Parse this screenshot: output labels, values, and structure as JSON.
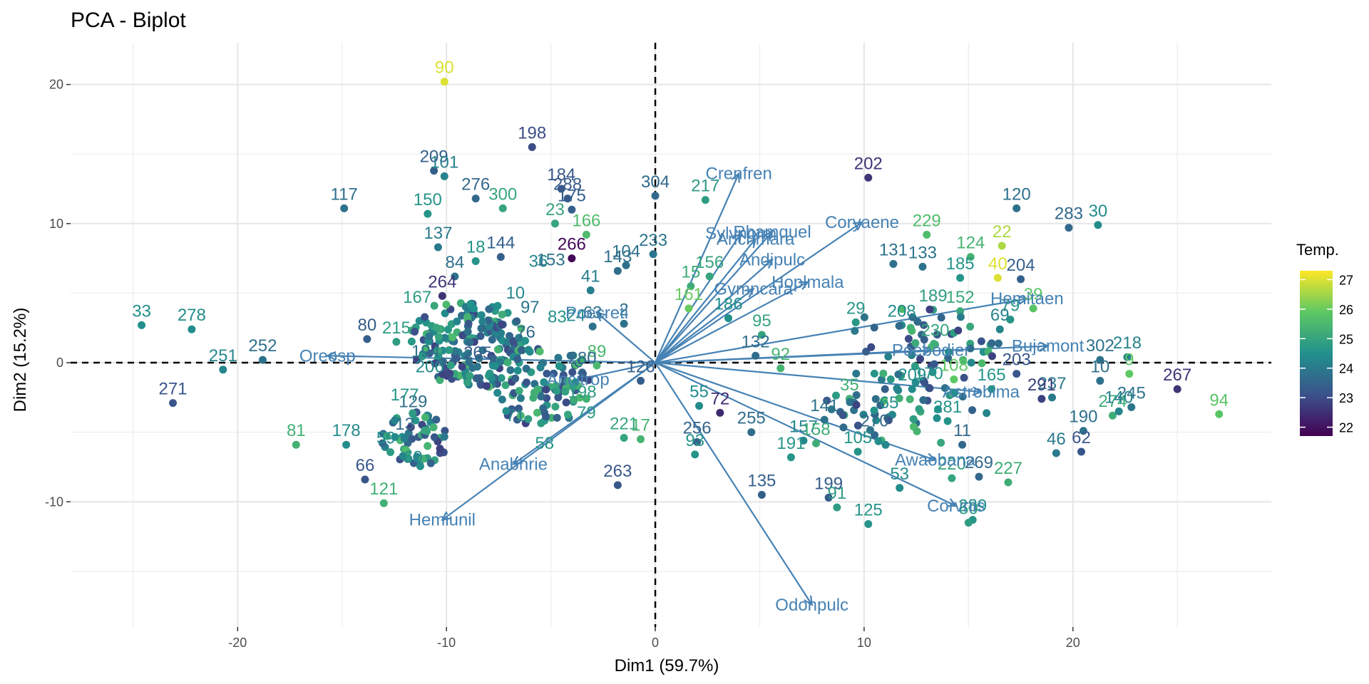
{
  "chart_data": {
    "type": "scatter",
    "title": "PCA - Biplot",
    "xlabel": "Dim1 (59.7%)",
    "ylabel": "Dim2 (15.2%)",
    "xlim": [
      -28,
      29.5
    ],
    "ylim": [
      -19,
      23
    ],
    "xticks": [
      -20,
      -10,
      0,
      10,
      20
    ],
    "yticks": [
      -10,
      0,
      10,
      20
    ],
    "grid": true,
    "legend": {
      "title": "Temp.",
      "position": "right",
      "range": [
        21.7,
        27.3
      ],
      "ticks": [
        22,
        23,
        24,
        25,
        26,
        27
      ]
    },
    "arrow_color": "#4682b4",
    "color_scale": [
      "#440154",
      "#3b528b",
      "#21908c",
      "#5dc863",
      "#fde725"
    ],
    "points": [
      {
        "label": "90",
        "x": -10.1,
        "y": 20.2,
        "temp": 27.0
      },
      {
        "label": "198",
        "x": -5.9,
        "y": 15.5,
        "temp": 23.0
      },
      {
        "label": "209",
        "x": -10.6,
        "y": 13.8,
        "temp": 23.4
      },
      {
        "label": "101",
        "x": -10.1,
        "y": 13.4,
        "temp": 24.2
      },
      {
        "label": "117",
        "x": -14.9,
        "y": 11.1,
        "temp": 23.8
      },
      {
        "label": "276",
        "x": -8.6,
        "y": 11.8,
        "temp": 23.6
      },
      {
        "label": "300",
        "x": -7.3,
        "y": 11.1,
        "temp": 25.0
      },
      {
        "label": "150",
        "x": -10.9,
        "y": 10.7,
        "temp": 24.6
      },
      {
        "label": "184",
        "x": -4.5,
        "y": 12.5,
        "temp": 23.2
      },
      {
        "label": "288",
        "x": -4.2,
        "y": 11.8,
        "temp": 23.3
      },
      {
        "label": "175",
        "x": -4.0,
        "y": 11.0,
        "temp": 23.4
      },
      {
        "label": "304",
        "x": 0.0,
        "y": 12.0,
        "temp": 23.6
      },
      {
        "label": "23",
        "x": -4.8,
        "y": 10.0,
        "temp": 25.0
      },
      {
        "label": "166",
        "x": -3.3,
        "y": 9.2,
        "temp": 25.6
      },
      {
        "label": "266",
        "x": -4.0,
        "y": 7.5,
        "temp": 21.8
      },
      {
        "label": "137",
        "x": -10.4,
        "y": 8.3,
        "temp": 24.0
      },
      {
        "label": "144",
        "x": -7.4,
        "y": 7.6,
        "temp": 23.4
      },
      {
        "label": "18",
        "x": -8.6,
        "y": 7.3,
        "temp": 24.6
      },
      {
        "label": "104",
        "x": -1.4,
        "y": 7.0,
        "temp": 23.8
      },
      {
        "label": "143",
        "x": -1.8,
        "y": 6.6,
        "temp": 23.7
      },
      {
        "label": "233",
        "x": -0.1,
        "y": 7.8,
        "temp": 23.9
      },
      {
        "label": "41",
        "x": -3.1,
        "y": 5.2,
        "temp": 24.1
      },
      {
        "label": "264",
        "x": -10.2,
        "y": 4.8,
        "temp": 22.6
      },
      {
        "label": "84",
        "x": -9.6,
        "y": 6.2,
        "temp": 23.8
      },
      {
        "label": "63",
        "x": -3.0,
        "y": 2.6,
        "temp": 23.8
      },
      {
        "label": "2",
        "x": -1.5,
        "y": 2.8,
        "temp": 23.8
      },
      {
        "label": "80",
        "x": -13.8,
        "y": 1.7,
        "temp": 23.4
      },
      {
        "label": "215",
        "x": -12.4,
        "y": 1.5,
        "temp": 24.8
      },
      {
        "label": "33",
        "x": -24.6,
        "y": 2.7,
        "temp": 24.5
      },
      {
        "label": "278",
        "x": -22.2,
        "y": 2.4,
        "temp": 24.4
      },
      {
        "label": "251",
        "x": -20.7,
        "y": -0.5,
        "temp": 24.3
      },
      {
        "label": "252",
        "x": -18.8,
        "y": 0.2,
        "temp": 23.8
      },
      {
        "label": "271",
        "x": -23.1,
        "y": -2.9,
        "temp": 23.2
      },
      {
        "label": "89",
        "x": -2.8,
        "y": -0.2,
        "temp": 25.5
      },
      {
        "label": "280",
        "x": -3.5,
        "y": -0.7,
        "temp": 23.6
      },
      {
        "label": "126",
        "x": -0.7,
        "y": -1.3,
        "temp": 23.4
      },
      {
        "label": "81",
        "x": -17.2,
        "y": -5.9,
        "temp": 25.3
      },
      {
        "label": "178",
        "x": -14.8,
        "y": -5.9,
        "temp": 24.4
      },
      {
        "label": "66",
        "x": -13.9,
        "y": -8.4,
        "temp": 23.2
      },
      {
        "label": "121",
        "x": -13.0,
        "y": -10.1,
        "temp": 25.3
      },
      {
        "label": "221",
        "x": -1.5,
        "y": -5.4,
        "temp": 25.0
      },
      {
        "label": "17",
        "x": -0.7,
        "y": -5.5,
        "temp": 25.4
      },
      {
        "label": "263",
        "x": -1.8,
        "y": -8.8,
        "temp": 23.2
      },
      {
        "label": "217",
        "x": 2.4,
        "y": 11.7,
        "temp": 24.8
      },
      {
        "label": "202",
        "x": 10.2,
        "y": 13.3,
        "temp": 22.6
      },
      {
        "label": "120",
        "x": 17.3,
        "y": 11.1,
        "temp": 23.8
      },
      {
        "label": "283",
        "x": 19.8,
        "y": 9.7,
        "temp": 23.6
      },
      {
        "label": "30",
        "x": 21.2,
        "y": 9.9,
        "temp": 24.4
      },
      {
        "label": "229",
        "x": 13.0,
        "y": 9.2,
        "temp": 25.6
      },
      {
        "label": "22",
        "x": 16.6,
        "y": 8.4,
        "temp": 26.6
      },
      {
        "label": "124",
        "x": 15.1,
        "y": 7.6,
        "temp": 25.4
      },
      {
        "label": "40",
        "x": 16.4,
        "y": 6.1,
        "temp": 27.0
      },
      {
        "label": "204",
        "x": 17.5,
        "y": 6.0,
        "temp": 23.4
      },
      {
        "label": "131",
        "x": 11.4,
        "y": 7.1,
        "temp": 23.8
      },
      {
        "label": "133",
        "x": 12.8,
        "y": 6.9,
        "temp": 23.9
      },
      {
        "label": "185",
        "x": 14.6,
        "y": 6.1,
        "temp": 24.6
      },
      {
        "label": "156",
        "x": 2.6,
        "y": 6.2,
        "temp": 25.0
      },
      {
        "label": "15",
        "x": 1.7,
        "y": 5.5,
        "temp": 25.2
      },
      {
        "label": "161",
        "x": 1.6,
        "y": 3.9,
        "temp": 26.0
      },
      {
        "label": "186",
        "x": 3.5,
        "y": 3.2,
        "temp": 24.5
      },
      {
        "label": "95",
        "x": 5.1,
        "y": 2.0,
        "temp": 25.0
      },
      {
        "label": "132",
        "x": 4.8,
        "y": 0.5,
        "temp": 23.7
      },
      {
        "label": "92",
        "x": 6.0,
        "y": -0.4,
        "temp": 25.4
      },
      {
        "label": "189",
        "x": 13.3,
        "y": 3.8,
        "temp": 24.8
      },
      {
        "label": "152",
        "x": 14.6,
        "y": 3.7,
        "temp": 25.1
      },
      {
        "label": "29",
        "x": 9.6,
        "y": 2.9,
        "temp": 24.7
      },
      {
        "label": "208",
        "x": 11.8,
        "y": 2.7,
        "temp": 24.4
      },
      {
        "label": "230",
        "x": 13.4,
        "y": 1.3,
        "temp": 25.0
      },
      {
        "label": "220",
        "x": 14.2,
        "y": -8.3,
        "temp": 25.0
      },
      {
        "label": "269",
        "x": 15.5,
        "y": -8.2,
        "temp": 23.6
      },
      {
        "label": "227",
        "x": 16.9,
        "y": -8.6,
        "temp": 25.2
      },
      {
        "label": "46",
        "x": 19.2,
        "y": -6.5,
        "temp": 24.0
      },
      {
        "label": "62",
        "x": 20.4,
        "y": -6.4,
        "temp": 23.2
      },
      {
        "label": "190",
        "x": 20.5,
        "y": -4.9,
        "temp": 23.8
      },
      {
        "label": "245",
        "x": 22.8,
        "y": -3.2,
        "temp": 23.9
      },
      {
        "label": "274",
        "x": 21.9,
        "y": -3.8,
        "temp": 25.2
      },
      {
        "label": "140",
        "x": 22.2,
        "y": -3.5,
        "temp": 24.2
      },
      {
        "label": "267",
        "x": 25.0,
        "y": -1.9,
        "temp": 22.6
      },
      {
        "label": "94",
        "x": 27.0,
        "y": -3.7,
        "temp": 25.8
      },
      {
        "label": "302",
        "x": 21.3,
        "y": 0.2,
        "temp": 23.8
      },
      {
        "label": "218",
        "x": 22.6,
        "y": 0.4,
        "temp": 24.2
      },
      {
        "label": "9",
        "x": 22.7,
        "y": -0.8,
        "temp": 25.9
      },
      {
        "label": "10",
        "x": 21.3,
        "y": -1.3,
        "temp": 23.8
      },
      {
        "label": "237",
        "x": 19.0,
        "y": -2.5,
        "temp": 24.0
      },
      {
        "label": "291",
        "x": 18.5,
        "y": -2.6,
        "temp": 22.8
      },
      {
        "label": "203",
        "x": 17.3,
        "y": -0.8,
        "temp": 23.2
      },
      {
        "label": "55",
        "x": 2.1,
        "y": -3.1,
        "temp": 24.4
      },
      {
        "label": "72",
        "x": 3.1,
        "y": -3.6,
        "temp": 22.4
      },
      {
        "label": "256",
        "x": 2.0,
        "y": -5.7,
        "temp": 23.5
      },
      {
        "label": "93",
        "x": 1.9,
        "y": -6.6,
        "temp": 24.6
      },
      {
        "label": "255",
        "x": 4.6,
        "y": -5.0,
        "temp": 23.7
      },
      {
        "label": "135",
        "x": 5.1,
        "y": -9.5,
        "temp": 23.4
      },
      {
        "label": "157",
        "x": 7.1,
        "y": -5.6,
        "temp": 24.3
      },
      {
        "label": "191",
        "x": 6.5,
        "y": -6.8,
        "temp": 24.6
      },
      {
        "label": "158",
        "x": 7.7,
        "y": -5.8,
        "temp": 25.2
      },
      {
        "label": "199",
        "x": 8.3,
        "y": -9.7,
        "temp": 23.3
      },
      {
        "label": "91",
        "x": 8.7,
        "y": -10.4,
        "temp": 24.8
      },
      {
        "label": "125",
        "x": 10.2,
        "y": -11.6,
        "temp": 24.6
      },
      {
        "label": "105",
        "x": 9.7,
        "y": -6.4,
        "temp": 24.6
      },
      {
        "label": "270",
        "x": 10.5,
        "y": -5.2,
        "temp": 23.6
      },
      {
        "label": "53",
        "x": 11.7,
        "y": -9.0,
        "temp": 24.4
      },
      {
        "label": "141",
        "x": 8.1,
        "y": -4.1,
        "temp": 23.8
      },
      {
        "label": "35",
        "x": 9.3,
        "y": -2.6,
        "temp": 25.3
      },
      {
        "label": "65",
        "x": 11.2,
        "y": -3.9,
        "temp": 24.5
      },
      {
        "label": "209b",
        "x": 12.3,
        "y": -1.9,
        "temp": 24.4
      },
      {
        "label": "170",
        "x": 13.1,
        "y": -1.8,
        "temp": 24.6
      },
      {
        "label": "281",
        "x": 14.0,
        "y": -4.2,
        "temp": 24.6
      },
      {
        "label": "11",
        "x": 14.7,
        "y": -5.9,
        "temp": 23.6
      },
      {
        "label": "289",
        "x": 15.2,
        "y": -11.3,
        "temp": 24.6
      },
      {
        "label": "50",
        "x": 15.0,
        "y": -11.5,
        "temp": 24.8
      },
      {
        "label": "108",
        "x": 14.3,
        "y": -1.2,
        "temp": 25.9
      },
      {
        "label": "165",
        "x": 16.1,
        "y": -1.9,
        "temp": 24.6
      },
      {
        "label": "79",
        "x": 17.0,
        "y": 3.1,
        "temp": 24.6
      },
      {
        "label": "39",
        "x": 18.1,
        "y": 3.9,
        "temp": 25.8
      },
      {
        "label": "69",
        "x": 16.5,
        "y": 2.4,
        "temp": 24.2
      }
    ],
    "cluster_labels": [
      {
        "label": "194",
        "x": -11.0,
        "y": 0.4,
        "temp": 23.8
      },
      {
        "label": "265",
        "x": -8.5,
        "y": 0.3,
        "temp": 23.3
      },
      {
        "label": "206",
        "x": -10.8,
        "y": -0.7,
        "temp": 24.3
      },
      {
        "label": "129",
        "x": -11.6,
        "y": -3.2,
        "temp": 23.7
      },
      {
        "label": "177",
        "x": -12.0,
        "y": -2.7,
        "temp": 24.6
      },
      {
        "label": "59",
        "x": -12.9,
        "y": -5.8,
        "temp": 24.4
      },
      {
        "label": "13",
        "x": -12.0,
        "y": -4.8,
        "temp": 23.7
      },
      {
        "label": "60",
        "x": -11.6,
        "y": -7.2,
        "temp": 24.4
      },
      {
        "label": "167",
        "x": -11.4,
        "y": 4.3,
        "temp": 24.8
      },
      {
        "label": "97",
        "x": -6.0,
        "y": 3.6,
        "temp": 23.9
      },
      {
        "label": "10b",
        "x": -6.7,
        "y": 4.6,
        "temp": 24.3
      },
      {
        "label": "36",
        "x": -5.6,
        "y": 6.9,
        "temp": 24.3
      },
      {
        "label": "153",
        "x": -5.0,
        "y": 7.0,
        "temp": 23.8
      },
      {
        "label": "24",
        "x": -3.8,
        "y": 3.0,
        "temp": 24.4
      },
      {
        "label": "83",
        "x": -4.7,
        "y": 2.9,
        "temp": 24.6
      },
      {
        "label": "198b",
        "x": -3.5,
        "y": -2.5,
        "temp": 24.8
      },
      {
        "label": "79b",
        "x": -3.3,
        "y": -4.0,
        "temp": 24.7
      },
      {
        "label": "58",
        "x": -5.3,
        "y": -6.2,
        "temp": 24.6
      },
      {
        "label": "71",
        "x": -6.7,
        "y": -4.2,
        "temp": 24.2
      },
      {
        "label": "76",
        "x": -6.2,
        "y": 1.8,
        "temp": 23.6
      }
    ],
    "variables": [
      {
        "name": "Crenfren",
        "x": 4.0,
        "y": 13.6
      },
      {
        "name": "Rhamquel",
        "x": 5.6,
        "y": 9.4
      },
      {
        "name": "Sylvnorm",
        "x": 4.1,
        "y": 9.3
      },
      {
        "name": "Anchmara",
        "x": 4.8,
        "y": 8.9
      },
      {
        "name": "Coryaene",
        "x": 9.9,
        "y": 10.1
      },
      {
        "name": "Andipulc",
        "x": 5.6,
        "y": 7.4
      },
      {
        "name": "Hoplmala",
        "x": 7.3,
        "y": 5.8
      },
      {
        "name": "Gymncara",
        "x": 4.7,
        "y": 5.3
      },
      {
        "name": "Poecreti",
        "x": -2.8,
        "y": 3.6
      },
      {
        "name": "Hemitaen",
        "x": 17.8,
        "y": 4.6
      },
      {
        "name": "Bujamont",
        "x": 18.8,
        "y": 1.2
      },
      {
        "name": "Poebodier",
        "x": 13.2,
        "y": 0.9
      },
      {
        "name": "Astrobima",
        "x": 15.6,
        "y": -2.1
      },
      {
        "name": "Oreosp",
        "x": -15.7,
        "y": 0.5
      },
      {
        "name": "Anabhrie",
        "x": -6.8,
        "y": -7.3
      },
      {
        "name": "Hemiunil",
        "x": -10.2,
        "y": -11.3
      },
      {
        "name": "Ancitrop",
        "x": -3.7,
        "y": -1.2
      },
      {
        "name": "Awaobana",
        "x": 13.4,
        "y": -7.0
      },
      {
        "name": "Corvriis",
        "x": 14.4,
        "y": -10.3
      },
      {
        "name": "Odonpulc",
        "x": 7.5,
        "y": -17.4
      }
    ]
  }
}
